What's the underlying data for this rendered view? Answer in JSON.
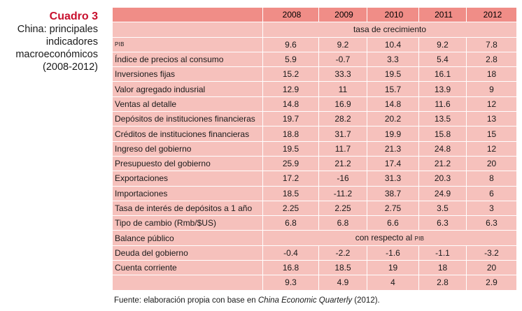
{
  "caption": {
    "number": "Cuadro 3",
    "title_lines": [
      "China: principales",
      "indicadores",
      "macroeconómicos",
      "(2008-2012)"
    ]
  },
  "table": {
    "years": [
      "2008",
      "2009",
      "2010",
      "2011",
      "2012"
    ],
    "section_growth": "tasa de crecimiento",
    "rows_growth": [
      {
        "label": "PIB",
        "values": [
          "9.6",
          "9.2",
          "10.4",
          "9.2",
          "7.8"
        ]
      },
      {
        "label": "Índice de precios al consumo",
        "values": [
          "5.9",
          "-0.7",
          "3.3",
          "5.4",
          "2.8"
        ]
      },
      {
        "label": "Inversiones fijas",
        "values": [
          "15.2",
          "33.3",
          "19.5",
          "16.1",
          "18"
        ]
      },
      {
        "label": "Valor agregado indusrial",
        "values": [
          "12.9",
          "11",
          "15.7",
          "13.9",
          "9"
        ]
      },
      {
        "label": "Ventas al detalle",
        "values": [
          "14.8",
          "16.9",
          "14.8",
          "11.6",
          "12"
        ]
      },
      {
        "label": "Depósitos de instituciones financieras",
        "values": [
          "19.7",
          "28.2",
          "20.2",
          "13.5",
          "13"
        ]
      },
      {
        "label": "Créditos de instituciones financieras",
        "values": [
          "18.8",
          "31.7",
          "19.9",
          "15.8",
          "15"
        ]
      },
      {
        "label": "Ingreso del gobierno",
        "values": [
          "19.5",
          "11.7",
          "21.3",
          "24.8",
          "12"
        ]
      },
      {
        "label": "Presupuesto del gobierno",
        "values": [
          "25.9",
          "21.2",
          "17.4",
          "21.2",
          "20"
        ]
      },
      {
        "label": "Exportaciones",
        "values": [
          "17.2",
          "-16",
          "31.3",
          "20.3",
          "8"
        ]
      },
      {
        "label": "Importaciones",
        "values": [
          "18.5",
          "-11.2",
          "38.7",
          "24.9",
          "6"
        ]
      },
      {
        "label": "Tasa de interés de depósitos a 1 año",
        "values": [
          "2.25",
          "2.25",
          "2.75",
          "3.5",
          "3"
        ]
      },
      {
        "label": "Tipo de cambio (Rmb/$US)",
        "values": [
          "6.8",
          "6.8",
          "6.6",
          "6.3",
          "6.3"
        ]
      }
    ],
    "section_balance_label": "Balance público",
    "section_balance_header": "con respecto al PIB",
    "rows_balance": [
      {
        "label": "Deuda del gobierno",
        "values": [
          "-0.4",
          "-2.2",
          "-1.6",
          "-1.1",
          "-3.2"
        ]
      },
      {
        "label": "Cuenta corriente",
        "values": [
          "16.8",
          "18.5",
          "19",
          "18",
          "20"
        ]
      },
      {
        "label": "",
        "values": [
          "9.3",
          "4.9",
          "4",
          "2.8",
          "2.9"
        ]
      }
    ]
  },
  "source": {
    "prefix": "Fuente: elaboración propia con base en ",
    "publication": "China Economic Quarterly",
    "suffix": " (2012)."
  },
  "colors": {
    "accent": "#c8102e",
    "header_fill": "#f08d87",
    "cell_fill": "#f6c1bc"
  }
}
